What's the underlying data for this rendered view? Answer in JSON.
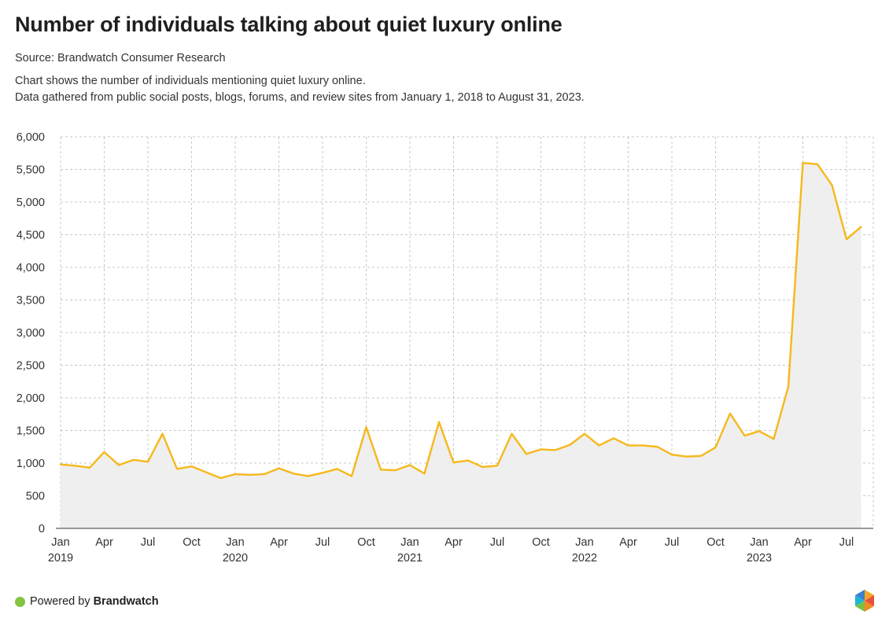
{
  "header": {
    "title": "Number of individuals talking about quiet luxury online",
    "source": "Source: Brandwatch Consumer Research",
    "description_lines": [
      "Chart shows the number of individuals mentioning quiet luxury online.",
      "Data gathered from public social posts, blogs, forums, and review sites from January 1, 2018 to August 31, 2023."
    ]
  },
  "footer": {
    "prefix": "Powered by",
    "brand": "Brandwatch",
    "dot_color": "#84c341",
    "logo_icon": "brandwatch-hexagon-logo-icon"
  },
  "colors": {
    "line": "#f6b81b",
    "area": "#efefef",
    "grid": "#c8c8c8"
  },
  "chart_data": {
    "type": "area",
    "title": "Number of individuals talking about quiet luxury online",
    "xlabel": "",
    "ylabel": "",
    "ylim": [
      0,
      6000
    ],
    "yticks": [
      0,
      500,
      1000,
      1500,
      2000,
      2500,
      3000,
      3500,
      4000,
      4500,
      5000,
      5500,
      6000
    ],
    "ytick_labels": [
      "0",
      "500",
      "1,000",
      "1,500",
      "2,000",
      "2,500",
      "3,000",
      "3,500",
      "4,000",
      "4,500",
      "5,000",
      "5,500",
      "6,000"
    ],
    "grid": true,
    "x_tick_labels": [
      {
        "index": 0,
        "month": "Jan",
        "year": "2019"
      },
      {
        "index": 3,
        "month": "Apr",
        "year": ""
      },
      {
        "index": 6,
        "month": "Jul",
        "year": ""
      },
      {
        "index": 9,
        "month": "Oct",
        "year": ""
      },
      {
        "index": 12,
        "month": "Jan",
        "year": "2020"
      },
      {
        "index": 15,
        "month": "Apr",
        "year": ""
      },
      {
        "index": 18,
        "month": "Jul",
        "year": ""
      },
      {
        "index": 21,
        "month": "Oct",
        "year": ""
      },
      {
        "index": 24,
        "month": "Jan",
        "year": "2021"
      },
      {
        "index": 27,
        "month": "Apr",
        "year": ""
      },
      {
        "index": 30,
        "month": "Jul",
        "year": ""
      },
      {
        "index": 33,
        "month": "Oct",
        "year": ""
      },
      {
        "index": 36,
        "month": "Jan",
        "year": "2022"
      },
      {
        "index": 39,
        "month": "Apr",
        "year": ""
      },
      {
        "index": 42,
        "month": "Jul",
        "year": ""
      },
      {
        "index": 45,
        "month": "Oct",
        "year": ""
      },
      {
        "index": 48,
        "month": "Jan",
        "year": "2023"
      },
      {
        "index": 51,
        "month": "Apr",
        "year": ""
      },
      {
        "index": 54,
        "month": "Jul",
        "year": ""
      }
    ],
    "series": [
      {
        "name": "Individuals",
        "start": "2019-01",
        "values": [
          980,
          960,
          930,
          1170,
          970,
          1050,
          1020,
          1450,
          910,
          950,
          860,
          770,
          830,
          820,
          830,
          920,
          840,
          800,
          850,
          910,
          800,
          1550,
          900,
          890,
          970,
          840,
          1630,
          1010,
          1040,
          940,
          960,
          1450,
          1140,
          1210,
          1200,
          1280,
          1450,
          1270,
          1380,
          1270,
          1270,
          1250,
          1130,
          1100,
          1110,
          1240,
          1760,
          1420,
          1490,
          1370,
          2170,
          5600,
          5580,
          5260,
          4430,
          4620
        ]
      }
    ]
  }
}
